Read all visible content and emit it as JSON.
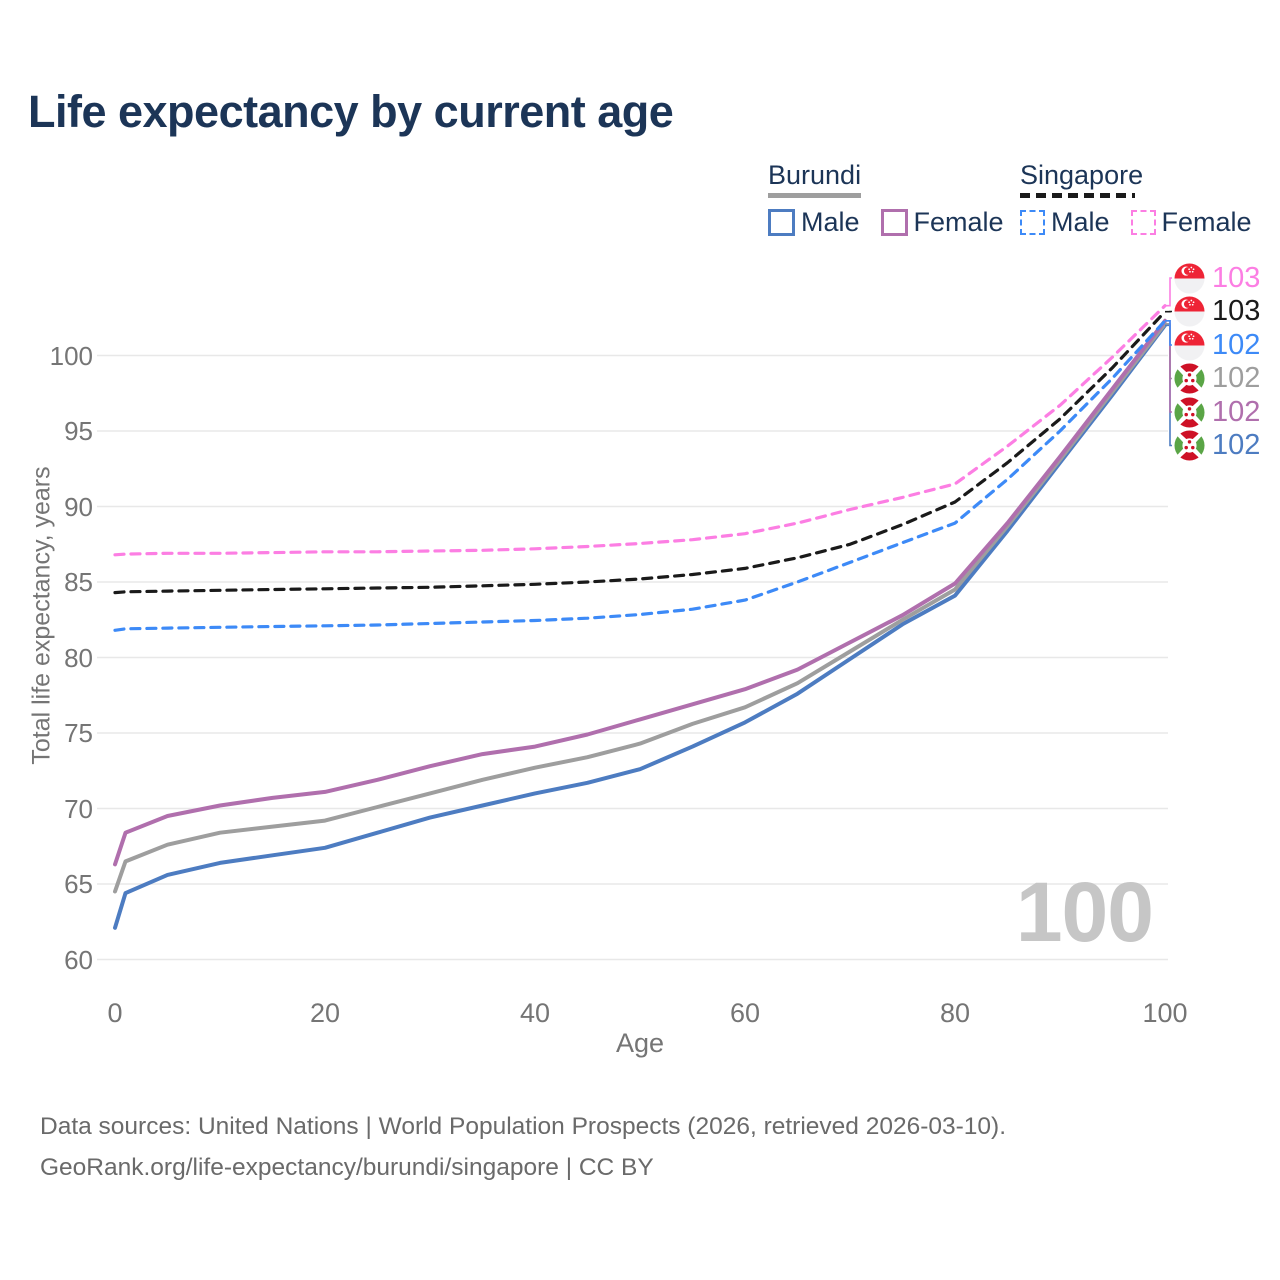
{
  "watermark": "100",
  "colors": {
    "title_text": "#1c3557",
    "legend_text": "#1c3557",
    "axis_text": "#757575",
    "gridline": "#e8e8e8",
    "watermark": "#c6c6c6",
    "footer_text": "#6a6a6a",
    "burundi_male": "#4d7cc1",
    "burundi_total": "#9e9e9e",
    "burundi_female": "#b06fad",
    "singapore_male": "#3d8af7",
    "singapore_total": "#1a1a1a",
    "singapore_female": "#fc7ee3",
    "flag_red_singapore": "#ee2436",
    "flag_red_burundi": "#ce1126",
    "flag_green_burundi": "#5aa546"
  },
  "legend": {
    "groups": [
      {
        "title": "Burundi",
        "line_style": "solid",
        "color_key": "burundi_total",
        "items": [
          {
            "label": "Male",
            "color_key": "burundi_male"
          },
          {
            "label": "Female",
            "color_key": "burundi_female"
          }
        ]
      },
      {
        "title": "Singapore",
        "line_style": "dashed",
        "color_key": "singapore_total",
        "items": [
          {
            "label": "Male",
            "color_key": "singapore_male"
          },
          {
            "label": "Female",
            "color_key": "singapore_female"
          }
        ]
      }
    ]
  },
  "footer": {
    "line1": "Data sources: United Nations | World Population Prospects (2026, retrieved 2026-03-10).",
    "line2": "GeoRank.org/life-expectancy/burundi/singapore | CC BY"
  },
  "chart_data": {
    "type": "line",
    "title": "Life expectancy by current age",
    "xlabel": "Age",
    "ylabel": "Total life expectancy, years",
    "x_ticks": [
      0,
      20,
      40,
      60,
      80,
      100
    ],
    "y_ticks": [
      60,
      65,
      70,
      75,
      80,
      85,
      90,
      95,
      100
    ],
    "xlim": [
      0,
      100
    ],
    "ylim": [
      60,
      103.5
    ],
    "grid": "horizontal-only",
    "legend_position": "top-right",
    "ages": [
      0,
      1,
      5,
      10,
      15,
      20,
      25,
      30,
      35,
      40,
      45,
      50,
      55,
      60,
      65,
      70,
      75,
      80,
      85,
      90,
      95,
      100
    ],
    "series": [
      {
        "name": "Burundi Male",
        "country": "Burundi",
        "sex": "Male",
        "line": "solid",
        "color_key": "burundi_male",
        "values": [
          62.1,
          64.4,
          65.6,
          66.4,
          66.9,
          67.4,
          68.4,
          69.4,
          70.2,
          71.0,
          71.7,
          72.6,
          74.1,
          75.7,
          77.6,
          79.9,
          82.2,
          84.1,
          88.4,
          92.9,
          97.4,
          102.0
        ],
        "end_label": {
          "flag": "burundi",
          "text": "102",
          "row": 5
        }
      },
      {
        "name": "Burundi",
        "country": "Burundi",
        "sex": "Both",
        "line": "solid",
        "color_key": "burundi_total",
        "values": [
          64.5,
          66.5,
          67.6,
          68.4,
          68.8,
          69.2,
          70.1,
          71.0,
          71.9,
          72.7,
          73.4,
          74.3,
          75.6,
          76.7,
          78.3,
          80.4,
          82.5,
          84.5,
          88.7,
          93.1,
          97.6,
          102.1
        ],
        "end_label": {
          "flag": "burundi",
          "text": "102",
          "row": 3
        }
      },
      {
        "name": "Burundi Female",
        "country": "Burundi",
        "sex": "Female",
        "line": "solid",
        "color_key": "burundi_female",
        "values": [
          66.3,
          68.4,
          69.5,
          70.2,
          70.7,
          71.1,
          71.9,
          72.8,
          73.6,
          74.1,
          74.9,
          75.9,
          76.9,
          77.9,
          79.2,
          81.0,
          82.8,
          84.9,
          88.9,
          93.3,
          97.8,
          102.3
        ],
        "end_label": {
          "flag": "burundi",
          "text": "102",
          "row": 4
        }
      },
      {
        "name": "Singapore Male",
        "country": "Singapore",
        "sex": "Male",
        "line": "dashed",
        "color_key": "singapore_male",
        "values": [
          81.8,
          81.9,
          81.95,
          82.0,
          82.05,
          82.1,
          82.15,
          82.25,
          82.35,
          82.45,
          82.6,
          82.85,
          83.2,
          83.8,
          85.0,
          86.3,
          87.6,
          88.9,
          91.8,
          95.0,
          98.5,
          102.3
        ],
        "end_label": {
          "flag": "singapore",
          "text": "102",
          "row": 2
        }
      },
      {
        "name": "Singapore",
        "country": "Singapore",
        "sex": "Both",
        "line": "dashed",
        "color_key": "singapore_total",
        "values": [
          84.3,
          84.35,
          84.4,
          84.45,
          84.5,
          84.55,
          84.6,
          84.65,
          84.75,
          84.85,
          85.0,
          85.2,
          85.5,
          85.9,
          86.6,
          87.5,
          88.8,
          90.3,
          92.9,
          95.8,
          99.2,
          102.9
        ],
        "end_label": {
          "flag": "singapore",
          "text": "103",
          "row": 1
        }
      },
      {
        "name": "Singapore Female",
        "country": "Singapore",
        "sex": "Female",
        "line": "dashed",
        "color_key": "singapore_female",
        "values": [
          86.8,
          86.85,
          86.9,
          86.9,
          86.95,
          87.0,
          87.0,
          87.05,
          87.1,
          87.2,
          87.35,
          87.55,
          87.8,
          88.2,
          88.9,
          89.8,
          90.6,
          91.5,
          94.0,
          96.7,
          99.9,
          103.3
        ],
        "end_label": {
          "flag": "singapore",
          "text": "103",
          "row": 0
        }
      }
    ]
  }
}
